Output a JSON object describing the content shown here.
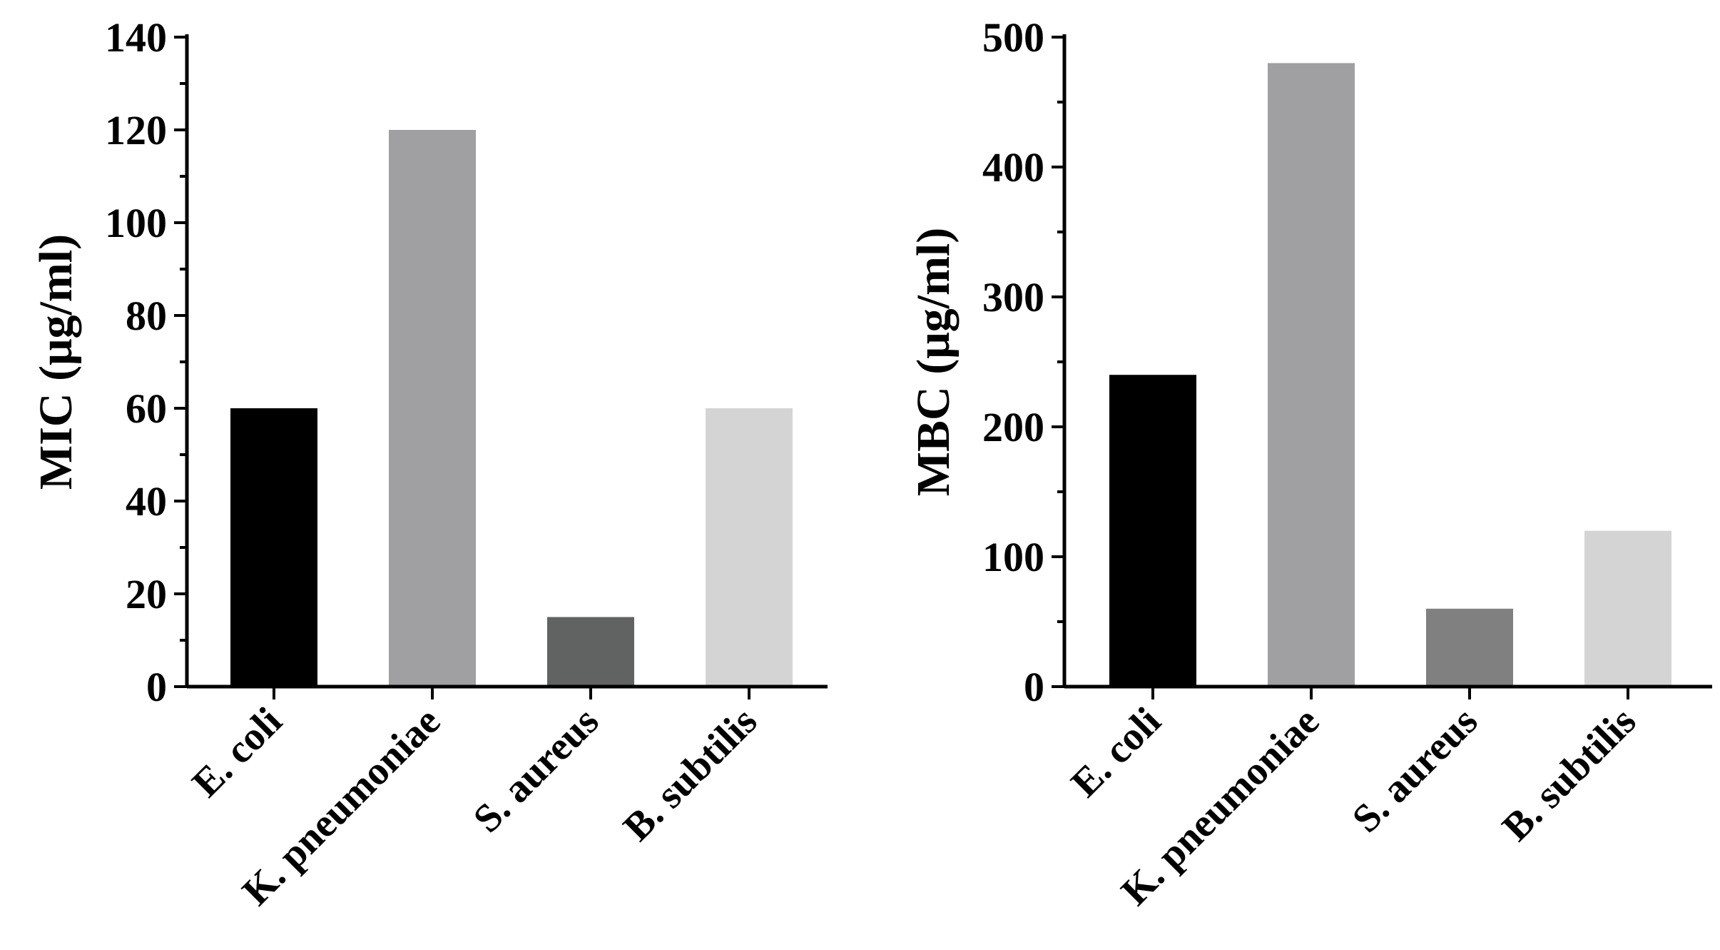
{
  "chart_data": [
    {
      "type": "bar",
      "categories": [
        "E. coli",
        "K. pneumoniae",
        "S. aureus",
        "B. subtilis"
      ],
      "values": [
        60,
        120,
        15,
        60
      ],
      "colors": [
        "#000000",
        "#a0a0a3",
        "#616362",
        "#d4d4d4"
      ],
      "title": "",
      "xlabel": "",
      "ylabel": "MIC (μg/ml)",
      "ylim": [
        0,
        140
      ],
      "yticks": [
        0,
        20,
        40,
        60,
        80,
        100,
        120,
        140
      ],
      "minor_ticks": true,
      "grid": false
    },
    {
      "type": "bar",
      "categories": [
        "E. coli",
        "K. pneumoniae",
        "S. aureus",
        "B. subtilis"
      ],
      "values": [
        240,
        480,
        60,
        120
      ],
      "colors": [
        "#000000",
        "#a0a0a3",
        "#808080",
        "#d4d4d4"
      ],
      "title": "",
      "xlabel": "",
      "ylabel": "MBC (μg/ml)",
      "ylim": [
        0,
        500
      ],
      "yticks": [
        0,
        100,
        200,
        300,
        400,
        500
      ],
      "minor_ticks": true,
      "grid": false
    }
  ]
}
